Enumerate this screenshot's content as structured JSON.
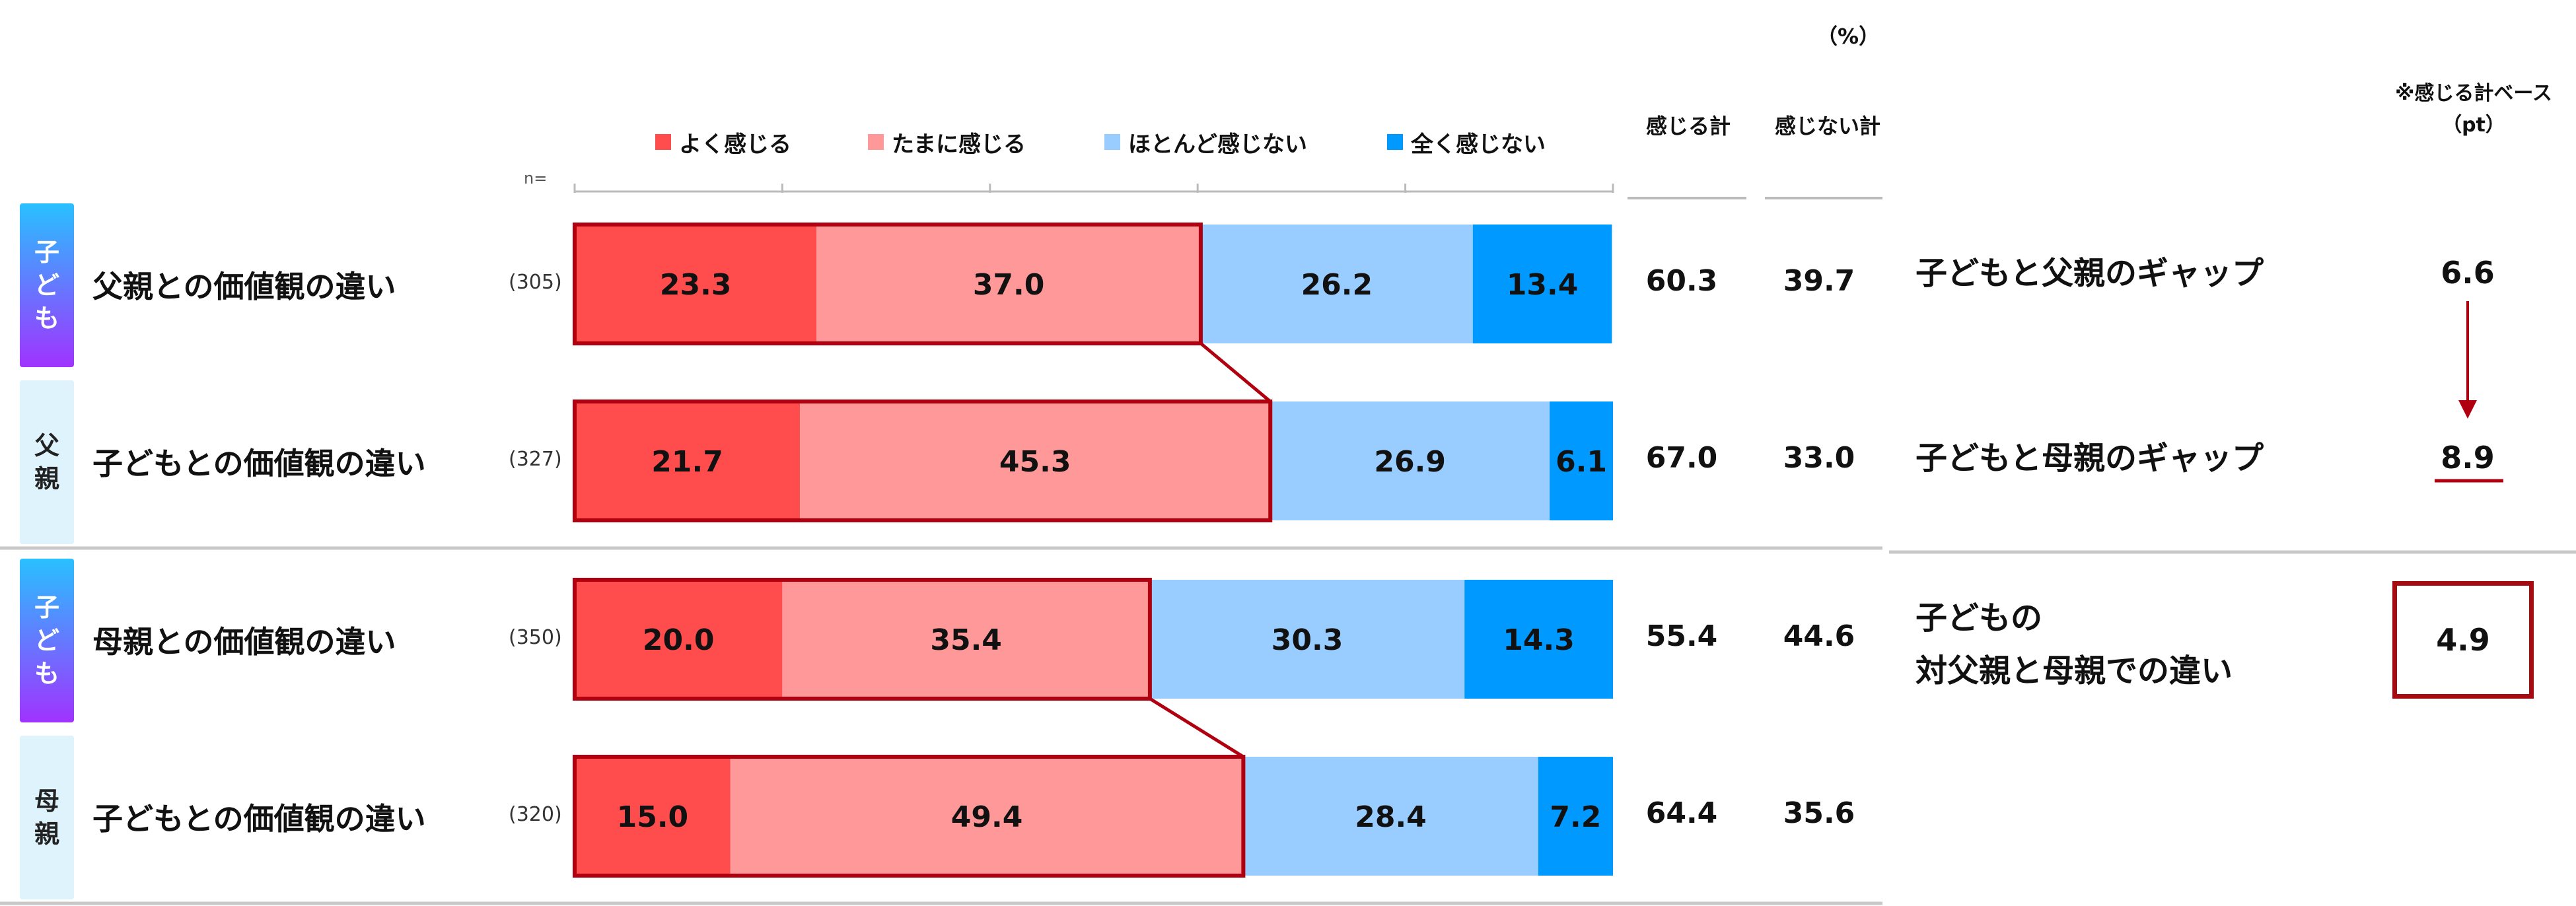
{
  "unit_label": "（%）",
  "legend": [
    "よく感じる",
    "たまに感じる",
    "ほとんど感じない",
    "全く感じない"
  ],
  "colors": [
    "#ff4d4d",
    "#ff9999",
    "#99ccff",
    "#0099ff"
  ],
  "n_header": "n=",
  "columns": {
    "sum_feel": "感じる計",
    "sum_not_feel": "感じない計"
  },
  "right_note": [
    "※感じる計ベース",
    "（pt）"
  ],
  "rows": [
    {
      "tag": [
        "子",
        "ど",
        "も"
      ],
      "tag_type": "child",
      "label": "父親との価値観の違い",
      "n": "(305)",
      "sum_feel": "60.3",
      "sum_not_feel": "39.7"
    },
    {
      "tag": [
        "父",
        "親"
      ],
      "tag_type": "parent",
      "label": "子どもとの価値観の違い",
      "n": "(327)",
      "sum_feel": "67.0",
      "sum_not_feel": "33.0"
    },
    {
      "tag": [
        "子",
        "ど",
        "も"
      ],
      "tag_type": "child",
      "label": "母親との価値観の違い",
      "n": "(350)",
      "sum_feel": "55.4",
      "sum_not_feel": "44.6"
    },
    {
      "tag": [
        "母",
        "親"
      ],
      "tag_type": "parent",
      "label": "子どもとの価値観の違い",
      "n": "(320)",
      "sum_feel": "64.4",
      "sum_not_feel": "35.6"
    }
  ],
  "gaps": [
    {
      "label": "子どもと父親のギャップ",
      "value": "6.6"
    },
    {
      "label": "子どもと母親のギャップ",
      "value": "8.9"
    },
    {
      "label_lines": [
        "子どもの",
        "対父親と母親での違い"
      ],
      "value": "4.9"
    }
  ],
  "chart_data": {
    "type": "bar",
    "orientation": "horizontal",
    "stacked": true,
    "categories": [
      "父親との価値観の違い",
      "子どもとの価値観の違い",
      "母親との価値観の違い",
      "子どもとの価値観の違い"
    ],
    "series": [
      {
        "name": "よく感じる",
        "values": [
          23.3,
          21.7,
          20.0,
          15.0
        ]
      },
      {
        "name": "たまに感じる",
        "values": [
          37.0,
          45.3,
          35.4,
          49.4
        ]
      },
      {
        "name": "ほとんど感じない",
        "values": [
          26.2,
          26.9,
          30.3,
          28.4
        ]
      },
      {
        "name": "全く感じない",
        "values": [
          13.4,
          6.1,
          14.3,
          7.2
        ]
      }
    ],
    "xlim": [
      0,
      100
    ],
    "legend_position": "top"
  }
}
